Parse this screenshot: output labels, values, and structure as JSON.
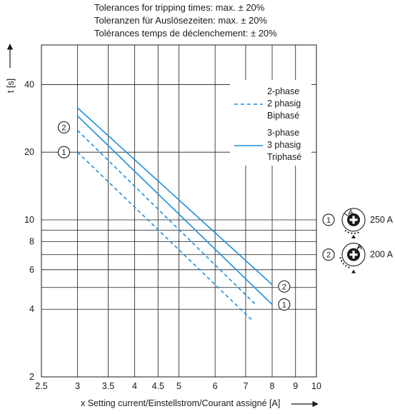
{
  "notes": [
    "Tolerances for tripping times: max. ± 20%",
    "Toleranzen für Auslösezeiten: max. ± 20%",
    "Tolérances temps de déclenchement: ± 20%"
  ],
  "chart_data": {
    "type": "line",
    "xscale": "log",
    "yscale": "log",
    "xlim": [
      2.5,
      10
    ],
    "ylim": [
      2,
      60
    ],
    "grid": true,
    "xlabel": "x Setting current/Einstellstrom/Courant assigné [A]",
    "ylabel": "t [s]",
    "xticks": [
      2.5,
      3,
      3.5,
      4,
      4.5,
      5,
      6,
      7,
      8,
      9,
      10
    ],
    "xtick_labels": [
      "2.5",
      "3",
      "3.5",
      "4",
      "4.5",
      "5",
      "6",
      "7",
      "8",
      "9",
      "10"
    ],
    "yticks": [
      2,
      4,
      6,
      8,
      10,
      20,
      40
    ],
    "ytick_labels": [
      "2",
      "4",
      "6",
      "8",
      "10",
      "20",
      "40"
    ],
    "extra_hgrid": [
      5,
      7,
      9
    ],
    "series": [
      {
        "name": "2-phase ①",
        "group": "2-phase",
        "marker": "1",
        "style": "dashed",
        "x": [
          3,
          7.2
        ],
        "y": [
          20,
          3.6
        ]
      },
      {
        "name": "2-phase ②",
        "group": "2-phase",
        "marker": "2",
        "style": "dashed",
        "x": [
          3,
          7.4
        ],
        "y": [
          25,
          4.15
        ]
      },
      {
        "name": "3-phase ①",
        "group": "3-phase",
        "marker": "1",
        "style": "solid",
        "x": [
          3,
          8
        ],
        "y": [
          29,
          4.2
        ]
      },
      {
        "name": "3-phase ②",
        "group": "3-phase",
        "marker": "2",
        "style": "solid",
        "x": [
          3,
          8
        ],
        "y": [
          31.5,
          5.15
        ]
      }
    ],
    "curve_labels": [
      {
        "text": "2",
        "x": 2.8,
        "y": 25.8
      },
      {
        "text": "1",
        "x": 2.8,
        "y": 20
      },
      {
        "text": "2",
        "x": 8.5,
        "y": 5.05
      },
      {
        "text": "1",
        "x": 8.5,
        "y": 4.2
      }
    ],
    "legend": {
      "placement": "top-right",
      "entries": [
        {
          "style": "dashed",
          "lines": [
            "2-phase",
            "2 phasig",
            "Biphasé"
          ]
        },
        {
          "style": "solid",
          "lines": [
            "3-phase",
            "3 phasig",
            "Triphasé"
          ]
        }
      ]
    },
    "dial_legend": [
      {
        "marker": "1",
        "value": "250 A",
        "y": 10
      },
      {
        "marker": "2",
        "value": "200 A",
        "y": 7
      }
    ],
    "dial_letter": "A",
    "colors": {
      "curves": "#1a8fe0",
      "grid": "#1a1a1a",
      "text": "#1a1a1a"
    }
  }
}
